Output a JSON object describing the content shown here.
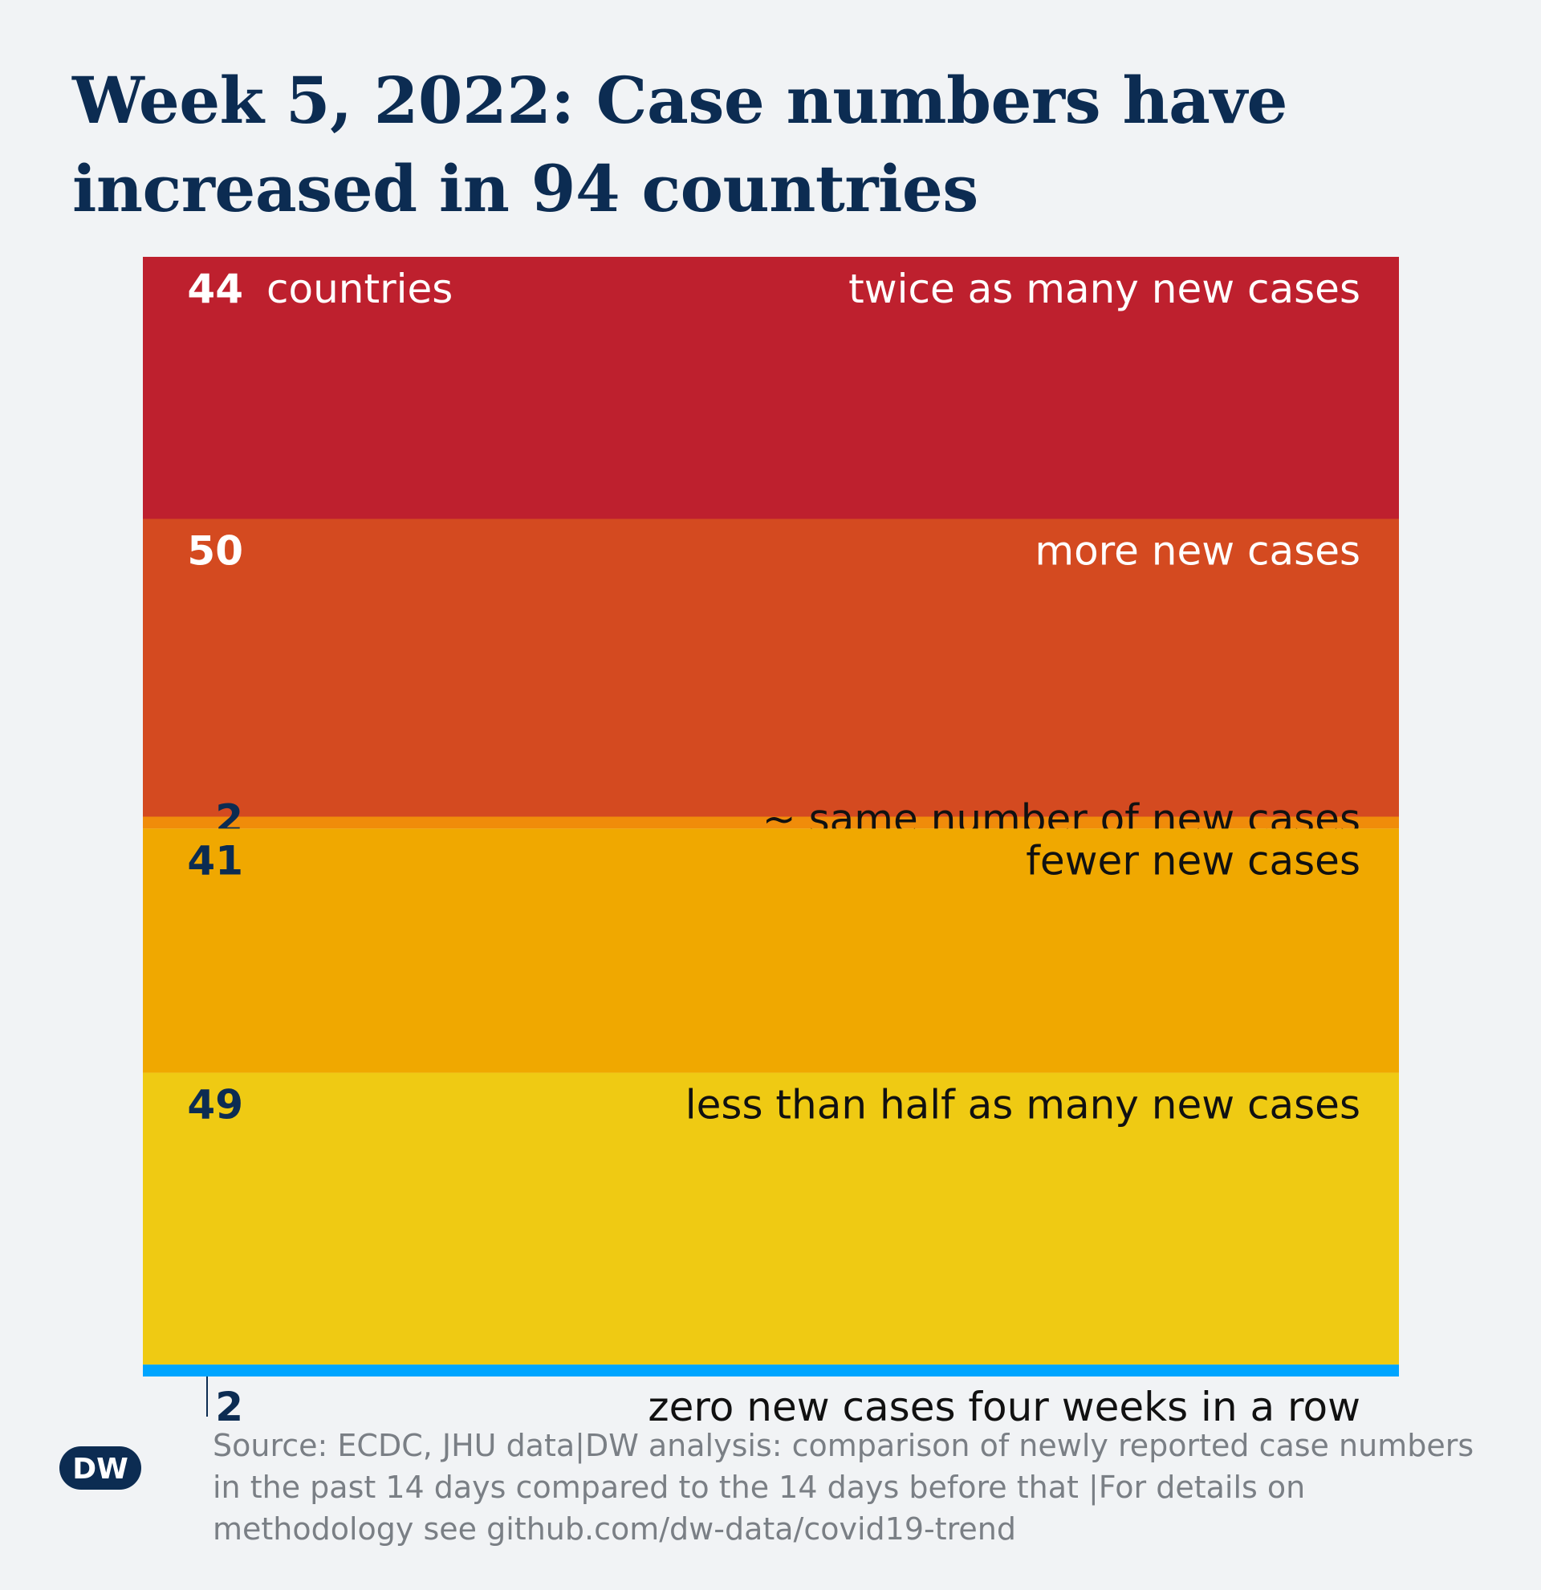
{
  "title": "Week 5, 2022: Case numbers have increased in 94 countries",
  "chart_data": {
    "type": "bar",
    "orientation": "stacked-vertical",
    "unit_label": "countries",
    "categories": [
      "twice as many new cases",
      "more new cases",
      "~ same number of new cases",
      "fewer new cases",
      "less than half as many new cases",
      "zero new cases four weeks in a row"
    ],
    "values": [
      44,
      50,
      2,
      41,
      49,
      2
    ],
    "colors": [
      "#be202e",
      "#d44a20",
      "#f08c0a",
      "#f0a800",
      "#efca13",
      "#00a5ff"
    ]
  },
  "source": "Source: ECDC, JHU data|DW analysis: comparison of newly reported case numbers in the past 14 days compared to the 14 days before that |For details on methodology see github.com/dw-data/covid19-trend",
  "logo": {
    "text": "DW",
    "color": "#0c2c52"
  }
}
